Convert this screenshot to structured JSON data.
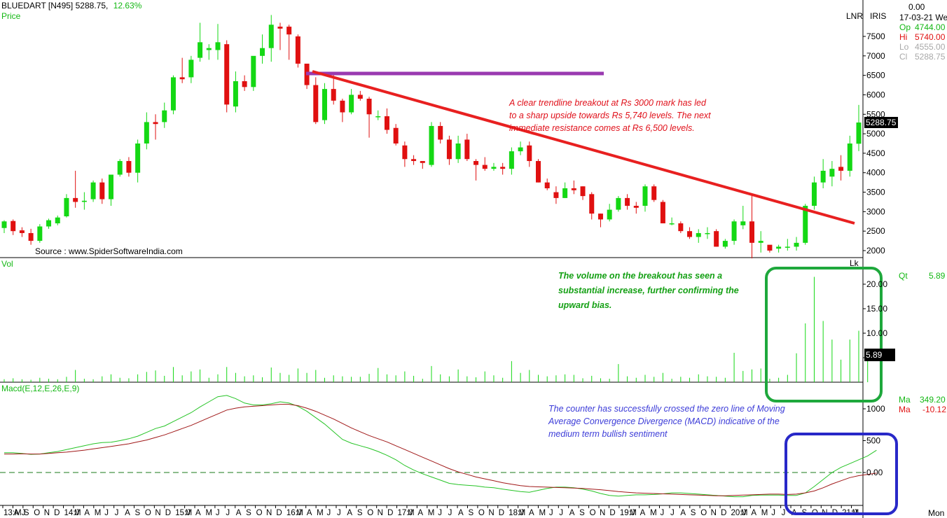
{
  "header": {
    "symbol": "BLUEDART [N495]",
    "price": "5288.75,",
    "change": "12.63%",
    "price_label": "Price",
    "lnr": "LNR",
    "iris": "IRIS"
  },
  "info_panel": {
    "value_top": "0.00",
    "date": "17-03-21 We",
    "op_label": "Op",
    "op_value": "4744.00",
    "hi_label": "Hi",
    "hi_value": "5740.00",
    "lo_label": "Lo",
    "lo_value": "4555.00",
    "cl_label": "Cl",
    "cl_value": "5288.75",
    "last_price": "5288.75"
  },
  "volume_panel": {
    "label": "Vol",
    "unit": "Lk",
    "qt_label": "Qt",
    "qt_value": "5.89",
    "last_volume": "5.89"
  },
  "macd_panel": {
    "label": "Macd(E,12,E,26,E,9)",
    "ma1_label": "Ma",
    "ma1_value": "349.20",
    "ma2_label": "Ma",
    "ma2_value": "-10.12"
  },
  "bottom_right": "Mon",
  "source": "Source : www.SpiderSoftwareIndia.com",
  "annotations": {
    "trendline_line1": "A clear trendline breakout at Rs 3000 mark has led",
    "trendline_line2": "to a sharp upside towards Rs 5,740 levels. The next",
    "trendline_line3": "immediate resistance comes at Rs 6,500 levels.",
    "volume_line1": "The volume on the breakout has seen a",
    "volume_line2": "substantial increase, further confirming the",
    "volume_line3": "upward bias.",
    "macd_line1": "The counter has successfully crossed the zero line of Moving",
    "macd_line2": "Average Convergence Divergence (MACD) indicative of the",
    "macd_line3": "medium term bullish sentiment"
  },
  "colors": {
    "up": "#14d814",
    "down": "#e01010",
    "trendline": "#e82020",
    "resistance": "#9a3ab0",
    "volume_box": "#1ea83c",
    "macd_box": "#2828c8",
    "macd_line": "#26c426",
    "signal_line": "#a01818"
  },
  "chart_data": [
    {
      "type": "candlestick",
      "title": "BLUEDART [N495]",
      "ylim": [
        1800,
        7900
      ],
      "y_ticks": [
        2000,
        2500,
        3000,
        3500,
        4000,
        4500,
        5000,
        5500,
        6000,
        6500,
        7000,
        7500
      ],
      "x_tick_labels": [
        "13:MJ",
        "A",
        "S",
        "O",
        "N",
        "D",
        "14:J",
        "M",
        "A",
        "M",
        "J",
        "J",
        "A",
        "S",
        "O",
        "N",
        "D",
        "15:J",
        "M",
        "A",
        "M",
        "J",
        "J",
        "A",
        "S",
        "O",
        "N",
        "D",
        "16:J",
        "M",
        "A",
        "M",
        "J",
        "J",
        "A",
        "S",
        "O",
        "N",
        "D",
        "17:J",
        "M",
        "A",
        "M",
        "J",
        "J",
        "A",
        "S",
        "O",
        "N",
        "D",
        "18:J",
        "M",
        "A",
        "M",
        "J",
        "J",
        "A",
        "S",
        "O",
        "N",
        "D",
        "19:J",
        "M",
        "A",
        "M",
        "J",
        "J",
        "A",
        "S",
        "O",
        "N",
        "D",
        "20:J",
        "M",
        "A",
        "M",
        "J",
        "J",
        "A",
        "S",
        "O",
        "N",
        "D",
        "21:J",
        "M"
      ],
      "candles": [
        {
          "o": 2580,
          "h": 2780,
          "l": 2450,
          "c": 2750
        },
        {
          "o": 2760,
          "h": 2800,
          "l": 2400,
          "c": 2500
        },
        {
          "o": 2520,
          "h": 2600,
          "l": 2350,
          "c": 2450
        },
        {
          "o": 2450,
          "h": 2560,
          "l": 2150,
          "c": 2250
        },
        {
          "o": 2250,
          "h": 2680,
          "l": 2200,
          "c": 2620
        },
        {
          "o": 2620,
          "h": 2820,
          "l": 2560,
          "c": 2780
        },
        {
          "o": 2700,
          "h": 2900,
          "l": 2650,
          "c": 2850
        },
        {
          "o": 2880,
          "h": 3450,
          "l": 2850,
          "c": 3350
        },
        {
          "o": 3350,
          "h": 4050,
          "l": 3100,
          "c": 3250
        },
        {
          "o": 3250,
          "h": 3500,
          "l": 3050,
          "c": 3280
        },
        {
          "o": 3320,
          "h": 3800,
          "l": 3250,
          "c": 3750
        },
        {
          "o": 3750,
          "h": 3850,
          "l": 3200,
          "c": 3320
        },
        {
          "o": 3320,
          "h": 3950,
          "l": 3150,
          "c": 3950
        },
        {
          "o": 3950,
          "h": 4350,
          "l": 3900,
          "c": 4300
        },
        {
          "o": 4300,
          "h": 4400,
          "l": 3900,
          "c": 4000
        },
        {
          "o": 4000,
          "h": 4850,
          "l": 3750,
          "c": 4750
        },
        {
          "o": 4750,
          "h": 5550,
          "l": 4600,
          "c": 5300
        },
        {
          "o": 5300,
          "h": 5500,
          "l": 4850,
          "c": 5250
        },
        {
          "o": 5300,
          "h": 5800,
          "l": 5150,
          "c": 5600
        },
        {
          "o": 5600,
          "h": 6500,
          "l": 5500,
          "c": 6450
        },
        {
          "o": 6450,
          "h": 6950,
          "l": 6300,
          "c": 6400
        },
        {
          "o": 6450,
          "h": 7000,
          "l": 6300,
          "c": 6900
        },
        {
          "o": 6950,
          "h": 7850,
          "l": 6850,
          "c": 7350
        },
        {
          "o": 7150,
          "h": 7300,
          "l": 6900,
          "c": 7200
        },
        {
          "o": 7150,
          "h": 7820,
          "l": 6900,
          "c": 7350
        },
        {
          "o": 7300,
          "h": 7400,
          "l": 5550,
          "c": 5750
        },
        {
          "o": 5700,
          "h": 6600,
          "l": 5550,
          "c": 6350
        },
        {
          "o": 6350,
          "h": 6500,
          "l": 6100,
          "c": 6200
        },
        {
          "o": 6200,
          "h": 6950,
          "l": 6100,
          "c": 7000
        },
        {
          "o": 7000,
          "h": 7550,
          "l": 6800,
          "c": 7200
        },
        {
          "o": 7200,
          "h": 8050,
          "l": 6850,
          "c": 7800
        },
        {
          "o": 7750,
          "h": 7850,
          "l": 7150,
          "c": 7700
        },
        {
          "o": 7750,
          "h": 7800,
          "l": 6900,
          "c": 7550
        },
        {
          "o": 7500,
          "h": 7550,
          "l": 6700,
          "c": 6800
        },
        {
          "o": 6800,
          "h": 6750,
          "l": 6150,
          "c": 6250
        },
        {
          "o": 6250,
          "h": 6450,
          "l": 5250,
          "c": 5300
        },
        {
          "o": 5350,
          "h": 6300,
          "l": 5250,
          "c": 6150
        },
        {
          "o": 6150,
          "h": 6550,
          "l": 5750,
          "c": 5850
        },
        {
          "o": 5850,
          "h": 5900,
          "l": 5300,
          "c": 5550
        },
        {
          "o": 5550,
          "h": 6150,
          "l": 5500,
          "c": 6000
        },
        {
          "o": 6000,
          "h": 6100,
          "l": 5850,
          "c": 5900
        },
        {
          "o": 5900,
          "h": 5950,
          "l": 4900,
          "c": 5500
        },
        {
          "o": 5450,
          "h": 5600,
          "l": 5350,
          "c": 5450
        },
        {
          "o": 5450,
          "h": 5650,
          "l": 5000,
          "c": 5100
        },
        {
          "o": 5150,
          "h": 5250,
          "l": 4700,
          "c": 4750
        },
        {
          "o": 4700,
          "h": 4800,
          "l": 4150,
          "c": 4350
        },
        {
          "o": 4350,
          "h": 4450,
          "l": 4200,
          "c": 4300
        },
        {
          "o": 4300,
          "h": 4250,
          "l": 4100,
          "c": 4250
        },
        {
          "o": 4200,
          "h": 5300,
          "l": 4150,
          "c": 5200
        },
        {
          "o": 5200,
          "h": 5300,
          "l": 4750,
          "c": 4850
        },
        {
          "o": 4850,
          "h": 4950,
          "l": 4200,
          "c": 4350
        },
        {
          "o": 4350,
          "h": 4950,
          "l": 4250,
          "c": 4750
        },
        {
          "o": 4850,
          "h": 5000,
          "l": 4300,
          "c": 4350
        },
        {
          "o": 4300,
          "h": 4350,
          "l": 3800,
          "c": 4200
        },
        {
          "o": 4200,
          "h": 4400,
          "l": 4050,
          "c": 4100
        },
        {
          "o": 4100,
          "h": 4250,
          "l": 4050,
          "c": 4150
        },
        {
          "o": 4150,
          "h": 4250,
          "l": 3950,
          "c": 4100
        },
        {
          "o": 4100,
          "h": 4650,
          "l": 3950,
          "c": 4550
        },
        {
          "o": 4550,
          "h": 4800,
          "l": 4450,
          "c": 4650
        },
        {
          "o": 4700,
          "h": 4800,
          "l": 4150,
          "c": 4300
        },
        {
          "o": 4300,
          "h": 4350,
          "l": 3750,
          "c": 3750
        },
        {
          "o": 3750,
          "h": 3850,
          "l": 3550,
          "c": 3600
        },
        {
          "o": 3500,
          "h": 3650,
          "l": 3200,
          "c": 3350
        },
        {
          "o": 3350,
          "h": 3750,
          "l": 3350,
          "c": 3600
        },
        {
          "o": 3600,
          "h": 3800,
          "l": 3450,
          "c": 3550
        },
        {
          "o": 3650,
          "h": 3650,
          "l": 3300,
          "c": 3400
        },
        {
          "o": 3450,
          "h": 3500,
          "l": 2800,
          "c": 2950
        },
        {
          "o": 2950,
          "h": 2950,
          "l": 2600,
          "c": 2800
        },
        {
          "o": 2800,
          "h": 3200,
          "l": 2750,
          "c": 3050
        },
        {
          "o": 3050,
          "h": 3400,
          "l": 3000,
          "c": 3350
        },
        {
          "o": 3350,
          "h": 3450,
          "l": 3050,
          "c": 3150
        },
        {
          "o": 3150,
          "h": 3250,
          "l": 2950,
          "c": 3100
        },
        {
          "o": 3150,
          "h": 3700,
          "l": 3000,
          "c": 3650
        },
        {
          "o": 3650,
          "h": 3700,
          "l": 3250,
          "c": 3300
        },
        {
          "o": 3250,
          "h": 3300,
          "l": 2700,
          "c": 2700
        },
        {
          "o": 2700,
          "h": 2850,
          "l": 2650,
          "c": 2700
        },
        {
          "o": 2700,
          "h": 2750,
          "l": 2450,
          "c": 2500
        },
        {
          "o": 2500,
          "h": 2600,
          "l": 2300,
          "c": 2350
        },
        {
          "o": 2350,
          "h": 2550,
          "l": 2200,
          "c": 2450
        },
        {
          "o": 2450,
          "h": 2600,
          "l": 2300,
          "c": 2450
        },
        {
          "o": 2500,
          "h": 2550,
          "l": 2100,
          "c": 2100
        },
        {
          "o": 2100,
          "h": 2300,
          "l": 2050,
          "c": 2250
        },
        {
          "o": 2250,
          "h": 2800,
          "l": 2150,
          "c": 2750
        },
        {
          "o": 2650,
          "h": 3150,
          "l": 2550,
          "c": 2750
        },
        {
          "o": 2750,
          "h": 3450,
          "l": 1800,
          "c": 2200
        },
        {
          "o": 2200,
          "h": 2500,
          "l": 1950,
          "c": 2250
        },
        {
          "o": 2150,
          "h": 2100,
          "l": 1950,
          "c": 2000
        },
        {
          "o": 2050,
          "h": 2150,
          "l": 1950,
          "c": 2100
        },
        {
          "o": 2100,
          "h": 2300,
          "l": 2000,
          "c": 2100
        },
        {
          "o": 2100,
          "h": 2350,
          "l": 2000,
          "c": 2200
        },
        {
          "o": 2200,
          "h": 3200,
          "l": 2150,
          "c": 3150
        },
        {
          "o": 3150,
          "h": 3900,
          "l": 3050,
          "c": 3750
        },
        {
          "o": 3750,
          "h": 4350,
          "l": 3600,
          "c": 4050
        },
        {
          "o": 3900,
          "h": 4300,
          "l": 3650,
          "c": 4100
        },
        {
          "o": 4150,
          "h": 4450,
          "l": 3800,
          "c": 4050
        },
        {
          "o": 4050,
          "h": 4950,
          "l": 3900,
          "c": 4750
        },
        {
          "o": 4744,
          "h": 5740,
          "l": 4555,
          "c": 5288.75
        }
      ]
    },
    {
      "type": "bar",
      "title": "Vol",
      "ylabel": "Lk",
      "ylim": [
        0,
        22
      ],
      "y_ticks": [
        5,
        10,
        15,
        20
      ],
      "values": [
        0.6,
        0.8,
        0.6,
        0.5,
        0.9,
        0.7,
        0.6,
        1.1,
        2.5,
        0.7,
        0.6,
        1.2,
        1.6,
        0.9,
        0.8,
        1.6,
        2.1,
        2.4,
        1.3,
        3.1,
        1.4,
        2.2,
        2.6,
        0.9,
        1.6,
        3.1,
        1.9,
        1.2,
        1.4,
        1.0,
        3.0,
        1.9,
        1.5,
        2.8,
        1.9,
        2.5,
        0.9,
        1.4,
        1.2,
        1.1,
        1.1,
        1.7,
        2.9,
        1.6,
        1.4,
        2.2,
        1.3,
        0.7,
        3.3,
        1.6,
        1.2,
        2.6,
        1.2,
        1.0,
        2.2,
        1.4,
        0.9,
        4.3,
        1.9,
        2.5,
        1.5,
        1.2,
        1.4,
        1.6,
        1.5,
        0.8,
        1.3,
        0.8,
        0.7,
        3.7,
        1.2,
        0.9,
        1.5,
        1.1,
        1.9,
        0.7,
        1.1,
        0.9,
        1.6,
        1.2,
        1.1,
        0.9,
        6.0,
        2.3,
        2.6,
        2.8,
        0.7,
        0.9,
        1.5,
        5.9,
        12.0,
        21.5,
        12.5,
        8.7,
        4.6,
        8.7,
        10.5,
        5.89
      ]
    },
    {
      "type": "line",
      "title": "Macd(E,12,E,26,E,9)",
      "ylim": [
        -550,
        1250
      ],
      "y_ticks": [
        0,
        500,
        1000
      ],
      "series": [
        {
          "name": "Macd",
          "values": [
            310,
            310,
            300,
            285,
            290,
            310,
            330,
            360,
            390,
            420,
            450,
            470,
            475,
            500,
            530,
            570,
            630,
            690,
            730,
            800,
            870,
            940,
            1030,
            1110,
            1190,
            1210,
            1160,
            1090,
            1060,
            1060,
            1080,
            1110,
            1090,
            1040,
            960,
            860,
            760,
            640,
            520,
            460,
            420,
            380,
            330,
            270,
            200,
            110,
            40,
            -20,
            -70,
            -120,
            -170,
            -190,
            -200,
            -210,
            -230,
            -240,
            -260,
            -280,
            -300,
            -310,
            -280,
            -250,
            -230,
            -230,
            -240,
            -260,
            -290,
            -330,
            -360,
            -370,
            -360,
            -350,
            -350,
            -345,
            -335,
            -320,
            -320,
            -330,
            -340,
            -350,
            -360,
            -370,
            -380,
            -380,
            -360,
            -355,
            -355,
            -355,
            -360,
            -360,
            -320,
            -220,
            -110,
            0,
            80,
            140,
            200,
            260,
            349.2
          ]
        },
        {
          "name": "Signal",
          "values": [
            290,
            290,
            295,
            290,
            290,
            300,
            310,
            320,
            335,
            350,
            370,
            390,
            410,
            430,
            450,
            480,
            510,
            550,
            590,
            640,
            690,
            740,
            800,
            860,
            920,
            980,
            1010,
            1030,
            1040,
            1050,
            1060,
            1070,
            1070,
            1050,
            1010,
            960,
            900,
            840,
            770,
            700,
            640,
            580,
            530,
            480,
            420,
            360,
            300,
            240,
            180,
            120,
            60,
            10,
            -30,
            -70,
            -100,
            -130,
            -160,
            -185,
            -205,
            -220,
            -225,
            -230,
            -235,
            -240,
            -245,
            -250,
            -260,
            -270,
            -285,
            -300,
            -310,
            -320,
            -325,
            -330,
            -335,
            -340,
            -345,
            -350,
            -355,
            -360,
            -365,
            -365,
            -360,
            -355,
            -350,
            -345,
            -340,
            -340,
            -345,
            -340,
            -320,
            -290,
            -240,
            -180,
            -130,
            -80,
            -50,
            -30,
            -10.12
          ]
        }
      ]
    }
  ]
}
